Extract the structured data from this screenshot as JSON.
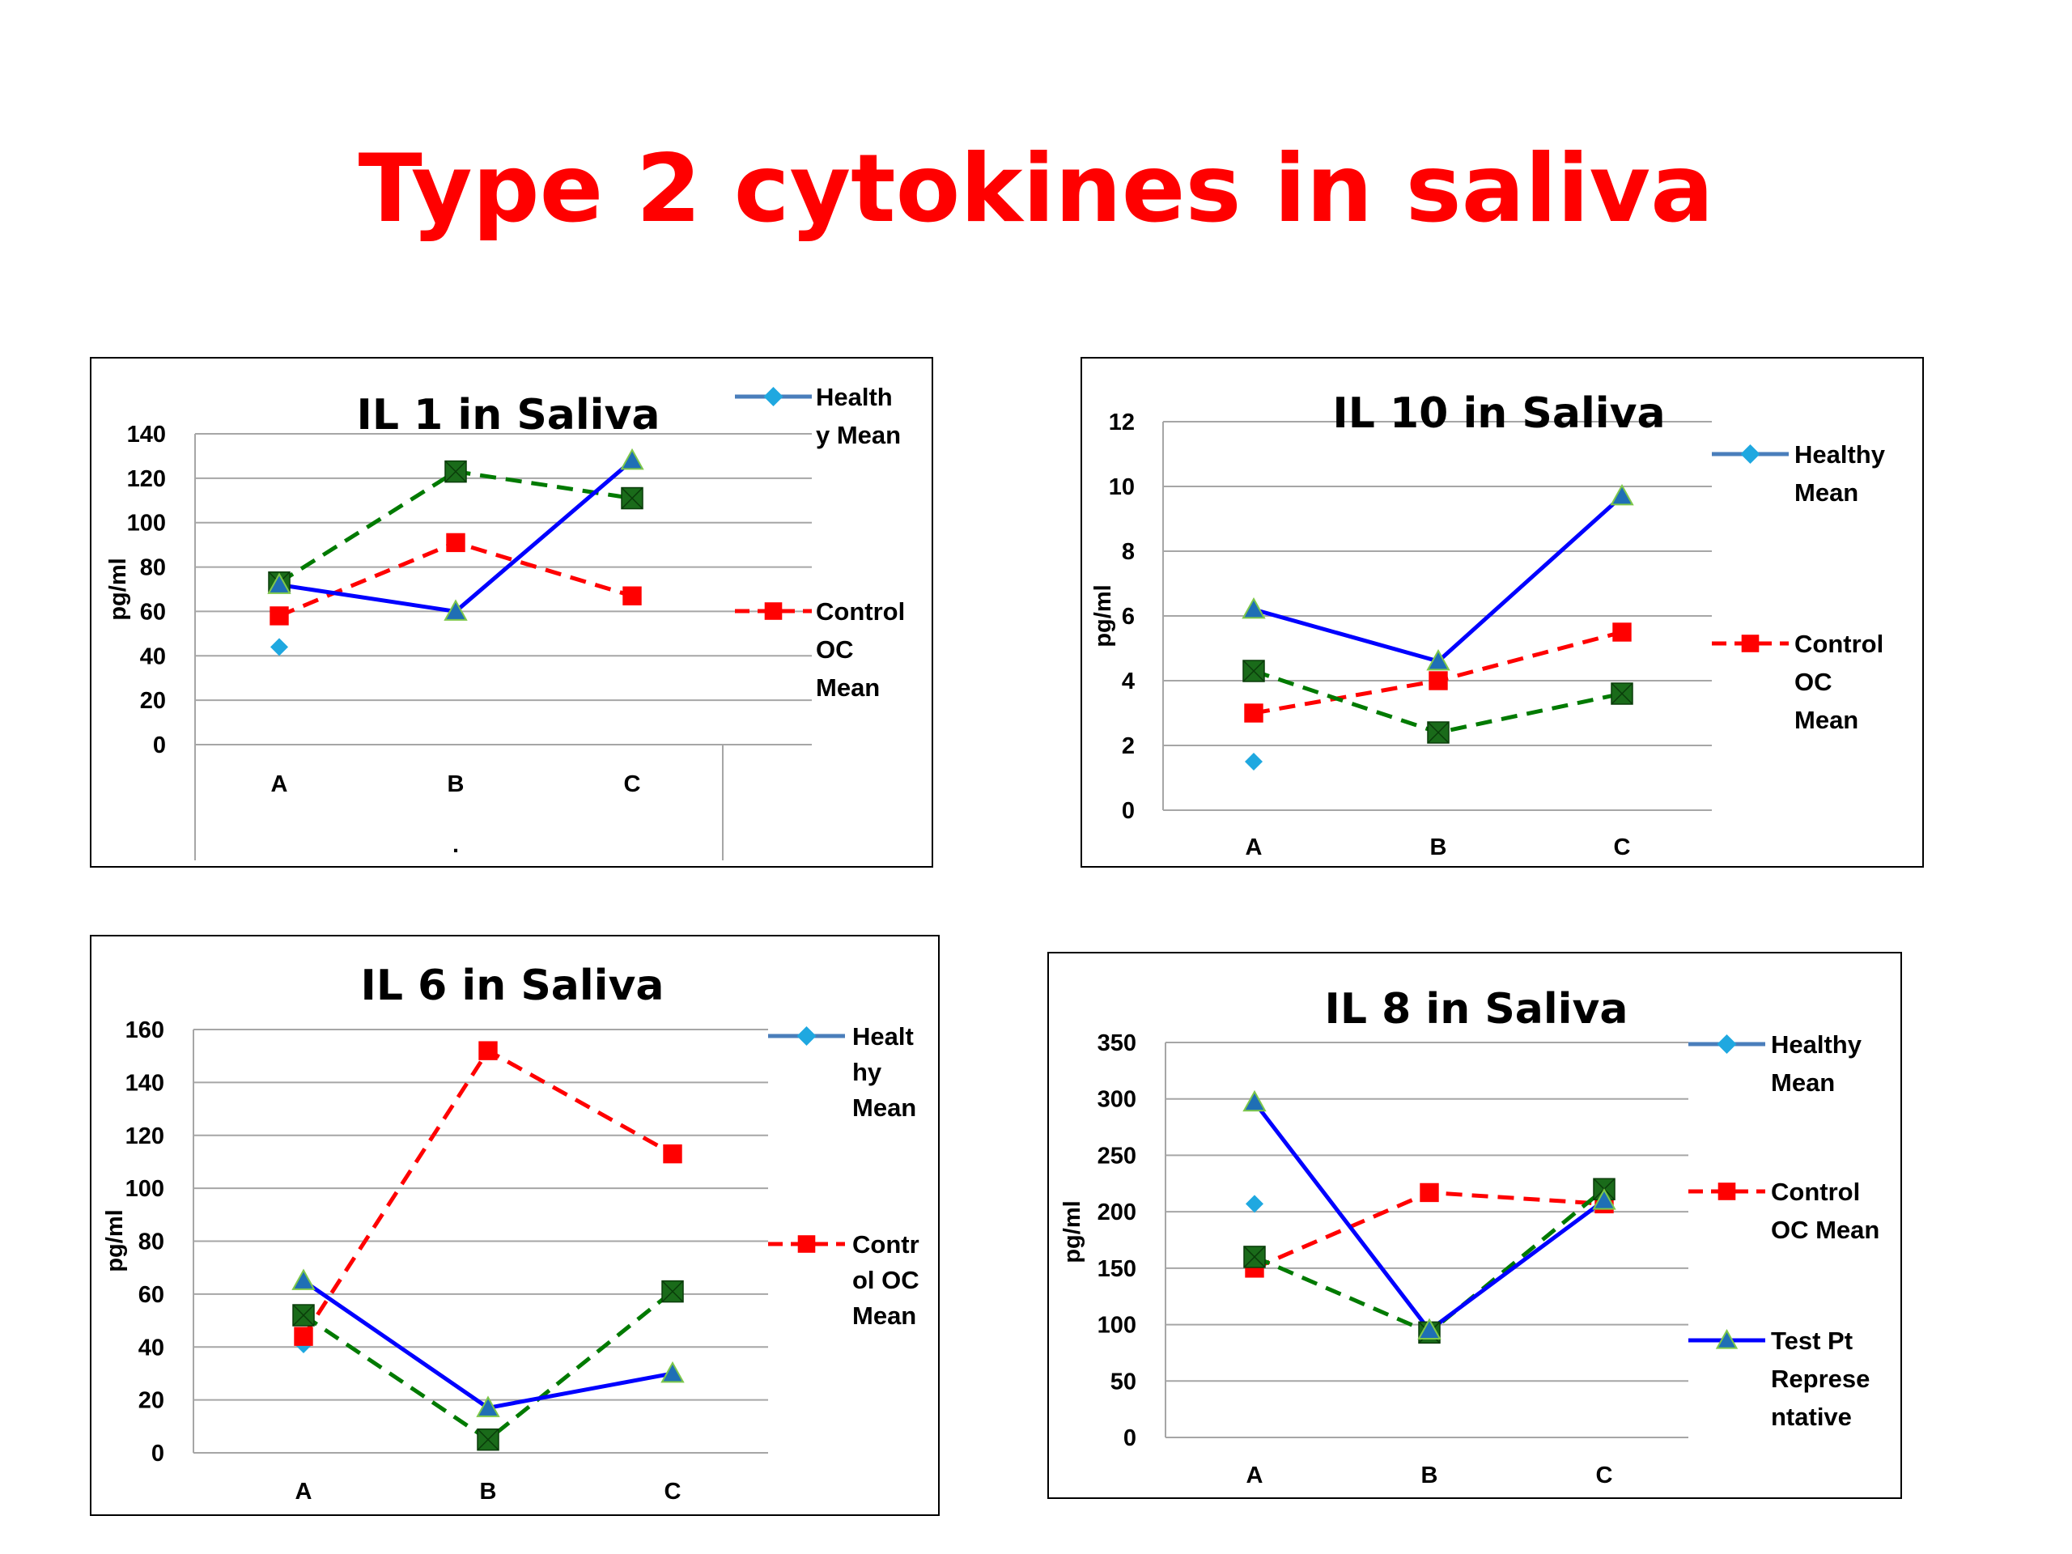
{
  "title": "Type 2 cytokines in saliva",
  "colors": {
    "title": "#ff0000",
    "healthy_line": "#4a7ebb",
    "healthy_marker": "#1fa8e0",
    "control": "#ff0000",
    "test": "#0000ff",
    "test_marker": "#1f6fb5",
    "green": "#007a00",
    "green_marker": "#1a6b1a",
    "grid": "#a6a6a6"
  },
  "chart_data": [
    {
      "type": "line",
      "title": "IL 1 in Saliva",
      "ylabel": "pg/ml",
      "xlabel": ".",
      "categories": [
        "A",
        "B",
        "C"
      ],
      "ylim": [
        0,
        140
      ],
      "yticks": [
        0,
        20,
        40,
        60,
        80,
        100,
        120,
        140
      ],
      "series": [
        {
          "key": "healthy",
          "style": "healthy",
          "values": [
            44,
            null,
            null
          ]
        },
        {
          "key": "control",
          "style": "control",
          "values": [
            58,
            91,
            67
          ]
        },
        {
          "key": "test",
          "style": "test",
          "values": [
            72,
            60,
            128
          ]
        },
        {
          "key": "green",
          "style": "green",
          "values": [
            73,
            123,
            111
          ]
        }
      ],
      "legend": [
        {
          "style": "healthy",
          "lines": [
            "Health",
            "y Mean"
          ]
        },
        {
          "style": "control",
          "lines": [
            "Control",
            "OC",
            "Mean"
          ]
        }
      ]
    },
    {
      "type": "line",
      "title": "IL 10 in Saliva",
      "ylabel": "pg/ml",
      "categories": [
        "A",
        "B",
        "C"
      ],
      "ylim": [
        0,
        12
      ],
      "yticks": [
        0,
        2,
        4,
        6,
        8,
        10,
        12
      ],
      "series": [
        {
          "key": "healthy",
          "style": "healthy",
          "values": [
            1.5,
            null,
            null
          ]
        },
        {
          "key": "control",
          "style": "control",
          "values": [
            3.0,
            4.0,
            5.5
          ]
        },
        {
          "key": "test",
          "style": "test",
          "values": [
            6.2,
            4.6,
            9.7
          ]
        },
        {
          "key": "green",
          "style": "green",
          "values": [
            4.3,
            2.4,
            3.6
          ]
        }
      ],
      "legend": [
        {
          "style": "healthy",
          "lines": [
            "Healthy",
            "Mean"
          ]
        },
        {
          "style": "control",
          "lines": [
            "Control",
            "OC",
            "Mean"
          ]
        }
      ]
    },
    {
      "type": "line",
      "title": "IL 6 in Saliva",
      "ylabel": "pg/ml",
      "categories": [
        "A",
        "B",
        "C"
      ],
      "ylim": [
        0,
        160
      ],
      "yticks": [
        0,
        20,
        40,
        60,
        80,
        100,
        120,
        140,
        160
      ],
      "series": [
        {
          "key": "healthy",
          "style": "healthy",
          "values": [
            41,
            null,
            null
          ]
        },
        {
          "key": "control",
          "style": "control",
          "values": [
            44,
            152,
            113
          ]
        },
        {
          "key": "test",
          "style": "test",
          "values": [
            65,
            17,
            30
          ]
        },
        {
          "key": "green",
          "style": "green",
          "values": [
            52,
            5,
            61
          ]
        }
      ],
      "legend": [
        {
          "style": "healthy",
          "lines": [
            "Healt",
            "hy",
            "Mean"
          ]
        },
        {
          "style": "control",
          "lines": [
            "Contr",
            "ol OC",
            "Mean"
          ]
        }
      ]
    },
    {
      "type": "line",
      "title": "IL 8 in Saliva",
      "ylabel": "pg/ml",
      "categories": [
        "A",
        "B",
        "C"
      ],
      "ylim": [
        0,
        350
      ],
      "yticks": [
        0,
        50,
        100,
        150,
        200,
        250,
        300,
        350
      ],
      "series": [
        {
          "key": "healthy",
          "style": "healthy",
          "values": [
            207,
            null,
            null
          ]
        },
        {
          "key": "control",
          "style": "control",
          "values": [
            150,
            217,
            207
          ]
        },
        {
          "key": "test",
          "style": "test",
          "values": [
            297,
            95,
            210
          ]
        },
        {
          "key": "green",
          "style": "green",
          "values": [
            160,
            93,
            220
          ]
        }
      ],
      "legend": [
        {
          "style": "healthy",
          "lines": [
            "Healthy",
            "Mean"
          ]
        },
        {
          "style": "control",
          "lines": [
            "Control",
            "OC Mean"
          ]
        },
        {
          "style": "test",
          "lines": [
            "Test Pt",
            "Represe",
            "ntative"
          ]
        }
      ]
    }
  ]
}
